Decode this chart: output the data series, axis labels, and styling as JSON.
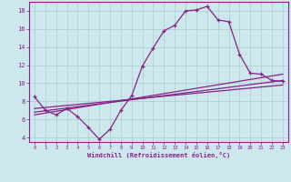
{
  "xlabel": "Windchill (Refroidissement éolien,°C)",
  "background_color": "#cce8ec",
  "grid_color": "#aacccc",
  "line_color": "#882288",
  "xlim": [
    -0.5,
    23.5
  ],
  "ylim": [
    3.5,
    19.0
  ],
  "yticks": [
    4,
    6,
    8,
    10,
    12,
    14,
    16,
    18
  ],
  "xticks": [
    0,
    1,
    2,
    3,
    4,
    5,
    6,
    7,
    8,
    9,
    10,
    11,
    12,
    13,
    14,
    15,
    16,
    17,
    18,
    19,
    20,
    21,
    22,
    23
  ],
  "series1_x": [
    0,
    1,
    2,
    3,
    4,
    5,
    6,
    7,
    8,
    9,
    10,
    11,
    12,
    13,
    14,
    15,
    16,
    17,
    18,
    19,
    20,
    21,
    22,
    23
  ],
  "series1_y": [
    8.5,
    7.0,
    6.5,
    7.2,
    6.3,
    5.1,
    3.8,
    4.9,
    7.0,
    8.6,
    11.9,
    13.9,
    15.8,
    16.4,
    18.0,
    18.1,
    18.5,
    17.0,
    16.8,
    13.2,
    11.1,
    11.0,
    10.3,
    10.2
  ],
  "series2_x": [
    0,
    23
  ],
  "series2_y": [
    6.5,
    11.0
  ],
  "series3_x": [
    0,
    23
  ],
  "series3_y": [
    6.8,
    10.3
  ],
  "series4_x": [
    0,
    23
  ],
  "series4_y": [
    7.2,
    9.8
  ]
}
